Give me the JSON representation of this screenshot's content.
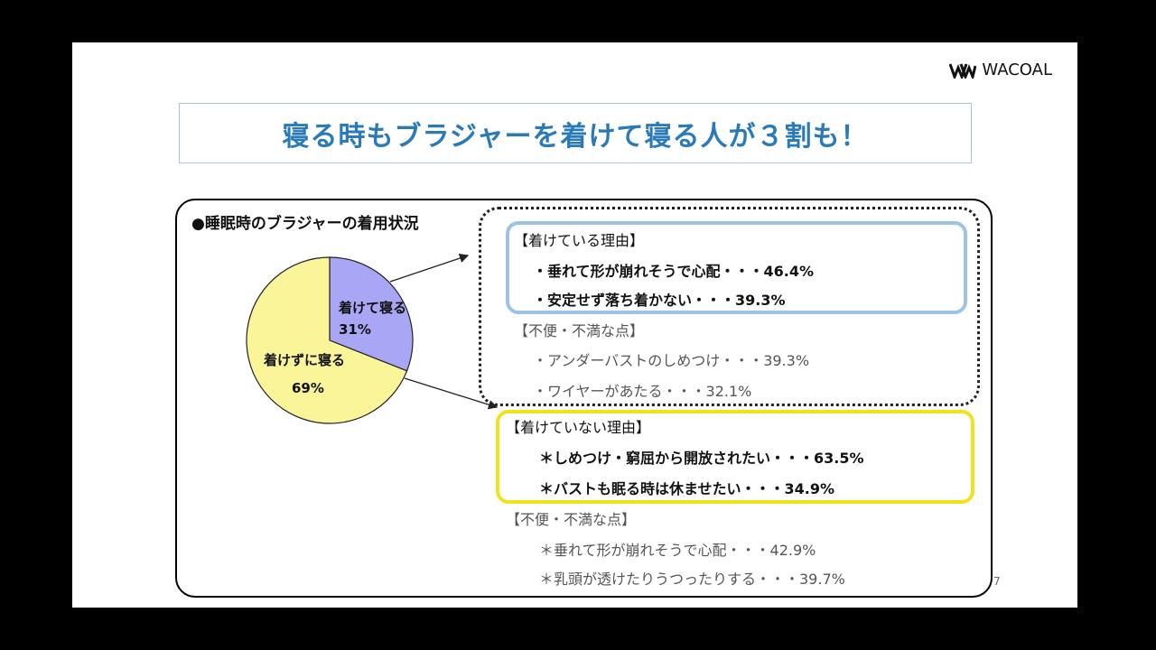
{
  "logo": {
    "text": "WACOAL"
  },
  "title": "寝る時もブラジャーを着けて寝る人が３割も！",
  "section_heading": "●睡眠時のブラジャーの着用状況",
  "chart_data": {
    "type": "pie",
    "categories": [
      "着けて寝る",
      "着けずに寝る"
    ],
    "values": [
      31,
      69
    ],
    "labels_pct": [
      "31%",
      "69%"
    ],
    "colors": [
      "#a9a6f5",
      "#fbf59a"
    ]
  },
  "wearing": {
    "reasons_header": "【着けている理由】",
    "reasons": [
      "・垂れて形が崩れそうで心配・・・46.4%",
      "・安定せず落ち着かない・・・39.3%"
    ],
    "complaints_header": "【不便・不満な点】",
    "complaints": [
      "・アンダーバストのしめつけ・・・39.3%",
      "・ワイヤーがあたる・・・32.1%"
    ]
  },
  "not_wearing": {
    "reasons_header": "【着けていない理由】",
    "reasons": [
      "＊しめつけ・窮屈から開放されたい・・・63.5%",
      "＊バストも眠る時は休ませたい・・・34.9%"
    ],
    "complaints_header": "【不便・不満な点】",
    "complaints": [
      "＊垂れて形が崩れそうで心配・・・42.9%",
      "＊乳頭が透けたりうつったりする・・・39.7%"
    ]
  },
  "page_number": "7"
}
